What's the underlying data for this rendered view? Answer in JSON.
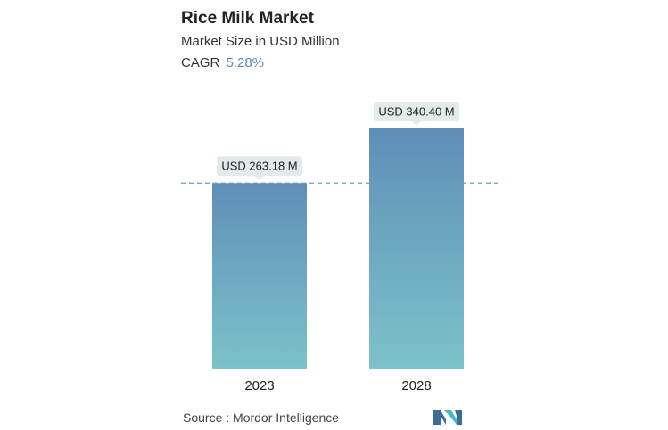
{
  "header": {
    "title": "Rice Milk Market",
    "subtitle": "Market Size in USD Million",
    "cagr_label": "CAGR",
    "cagr_value": "5.28%"
  },
  "footer": {
    "source_label": "Source :",
    "source_name": "Mordor Intelligence",
    "logo_icon": "mordor-intelligence-logo-icon"
  },
  "colors": {
    "bar_top": "#5f8fb8",
    "bar_bottom": "#7cc2c9",
    "dashed_line": "#6a9cc5",
    "label_bg": "#e3eaea",
    "logo_dark": "#3a6e96",
    "logo_light": "#4fb8c4"
  },
  "chart_data": {
    "type": "bar",
    "categories": [
      "2023",
      "2028"
    ],
    "values": [
      263.18,
      340.4
    ],
    "data_labels": [
      "USD 263.18 M",
      "USD 340.40 M"
    ],
    "title": "Rice Milk Market",
    "subtitle": "Market Size in USD Million",
    "xlabel": "",
    "ylabel": "",
    "ylim": [
      0,
      340.4
    ],
    "grid": false,
    "reference_line_value": 263.18
  }
}
